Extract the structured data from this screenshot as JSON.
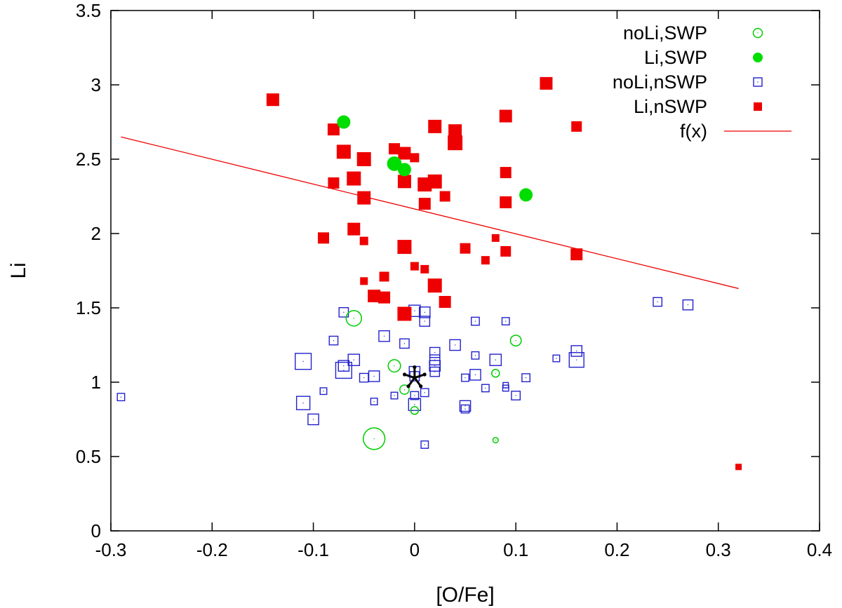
{
  "chart_data": {
    "type": "scatter",
    "xlabel": "[O/Fe]",
    "ylabel": "Li",
    "xlim": [
      -0.3,
      0.4
    ],
    "ylim": [
      0,
      3.5
    ],
    "xticks": [
      "-0.3",
      "-0.2",
      "-0.1",
      "0",
      "0.1",
      "0.2",
      "0.3",
      "0.4"
    ],
    "yticks": [
      "0",
      "0.5",
      "1",
      "1.5",
      "2",
      "2.5",
      "3",
      "3.5"
    ],
    "grid": false,
    "legend_position": "top-right",
    "series": [
      {
        "name": "noLi,SWP",
        "marker": "open-circle",
        "color": "#00cc00",
        "points": [
          {
            "x": -0.06,
            "y": 1.43,
            "size": 1.0
          },
          {
            "x": -0.02,
            "y": 1.11,
            "size": 0.8
          },
          {
            "x": -0.01,
            "y": 0.95,
            "size": 0.6
          },
          {
            "x": 0.0,
            "y": 0.81,
            "size": 0.5
          },
          {
            "x": -0.04,
            "y": 0.62,
            "size": 1.4
          },
          {
            "x": 0.08,
            "y": 1.06,
            "size": 0.5
          },
          {
            "x": 0.08,
            "y": 0.61,
            "size": 0.35
          },
          {
            "x": 0.1,
            "y": 1.28,
            "size": 0.7
          }
        ]
      },
      {
        "name": "Li,SWP",
        "marker": "filled-circle",
        "color": "#00dd00",
        "points": [
          {
            "x": -0.07,
            "y": 2.75,
            "size": 1.0
          },
          {
            "x": -0.02,
            "y": 2.47,
            "size": 1.1
          },
          {
            "x": -0.01,
            "y": 2.43,
            "size": 1.0
          },
          {
            "x": 0.11,
            "y": 2.26,
            "size": 1.0
          }
        ]
      },
      {
        "name": "noLi,nSWP",
        "marker": "open-square",
        "color": "#2222cc",
        "points": [
          {
            "x": -0.29,
            "y": 0.9,
            "size": 0.55
          },
          {
            "x": -0.11,
            "y": 1.14,
            "size": 1.2
          },
          {
            "x": -0.11,
            "y": 0.86,
            "size": 1.0
          },
          {
            "x": -0.1,
            "y": 0.75,
            "size": 0.8
          },
          {
            "x": -0.09,
            "y": 0.94,
            "size": 0.5
          },
          {
            "x": -0.08,
            "y": 1.28,
            "size": 0.65
          },
          {
            "x": -0.07,
            "y": 1.47,
            "size": 0.7
          },
          {
            "x": -0.07,
            "y": 1.11,
            "size": 0.8
          },
          {
            "x": -0.07,
            "y": 1.08,
            "size": 1.2
          },
          {
            "x": -0.06,
            "y": 1.15,
            "size": 0.85
          },
          {
            "x": -0.05,
            "y": 1.03,
            "size": 0.65
          },
          {
            "x": -0.04,
            "y": 1.04,
            "size": 0.8
          },
          {
            "x": -0.04,
            "y": 0.87,
            "size": 0.5
          },
          {
            "x": -0.03,
            "y": 1.31,
            "size": 0.8
          },
          {
            "x": -0.02,
            "y": 0.91,
            "size": 0.5
          },
          {
            "x": -0.01,
            "y": 1.26,
            "size": 0.7
          },
          {
            "x": 0.0,
            "y": 1.48,
            "size": 0.85
          },
          {
            "x": 0.0,
            "y": 1.07,
            "size": 0.8
          },
          {
            "x": 0.0,
            "y": 1.04,
            "size": 0.7
          },
          {
            "x": 0.0,
            "y": 0.91,
            "size": 0.6
          },
          {
            "x": 0.0,
            "y": 0.85,
            "size": 0.9
          },
          {
            "x": 0.01,
            "y": 1.47,
            "size": 0.8
          },
          {
            "x": 0.01,
            "y": 1.41,
            "size": 0.75
          },
          {
            "x": 0.01,
            "y": 0.93,
            "size": 0.6
          },
          {
            "x": 0.01,
            "y": 0.58,
            "size": 0.55
          },
          {
            "x": 0.02,
            "y": 1.2,
            "size": 0.75
          },
          {
            "x": 0.02,
            "y": 1.15,
            "size": 0.75
          },
          {
            "x": 0.02,
            "y": 1.11,
            "size": 0.8
          },
          {
            "x": 0.02,
            "y": 1.07,
            "size": 0.7
          },
          {
            "x": 0.04,
            "y": 1.25,
            "size": 0.8
          },
          {
            "x": 0.05,
            "y": 1.03,
            "size": 0.55
          },
          {
            "x": 0.05,
            "y": 0.84,
            "size": 0.8
          },
          {
            "x": 0.05,
            "y": 0.82,
            "size": 0.6
          },
          {
            "x": 0.06,
            "y": 1.41,
            "size": 0.6
          },
          {
            "x": 0.06,
            "y": 1.18,
            "size": 0.55
          },
          {
            "x": 0.06,
            "y": 1.05,
            "size": 0.8
          },
          {
            "x": 0.07,
            "y": 0.96,
            "size": 0.55
          },
          {
            "x": 0.08,
            "y": 1.15,
            "size": 0.85
          },
          {
            "x": 0.09,
            "y": 1.41,
            "size": 0.55
          },
          {
            "x": 0.09,
            "y": 0.98,
            "size": 0.4
          },
          {
            "x": 0.09,
            "y": 0.96,
            "size": 0.45
          },
          {
            "x": 0.1,
            "y": 0.91,
            "size": 0.65
          },
          {
            "x": 0.11,
            "y": 1.03,
            "size": 0.6
          },
          {
            "x": 0.14,
            "y": 1.16,
            "size": 0.5
          },
          {
            "x": 0.16,
            "y": 1.21,
            "size": 0.8
          },
          {
            "x": 0.16,
            "y": 1.15,
            "size": 1.1
          },
          {
            "x": 0.24,
            "y": 1.54,
            "size": 0.65
          },
          {
            "x": 0.27,
            "y": 1.52,
            "size": 0.75
          }
        ]
      },
      {
        "name": "Li,nSWP",
        "marker": "filled-square",
        "color": "#ee0000",
        "points": [
          {
            "x": -0.14,
            "y": 2.9,
            "size": 0.9
          },
          {
            "x": -0.08,
            "y": 2.7,
            "size": 0.85
          },
          {
            "x": -0.08,
            "y": 2.34,
            "size": 0.8
          },
          {
            "x": -0.09,
            "y": 1.97,
            "size": 0.8
          },
          {
            "x": -0.07,
            "y": 2.55,
            "size": 1.0
          },
          {
            "x": -0.06,
            "y": 2.37,
            "size": 1.0
          },
          {
            "x": -0.06,
            "y": 2.03,
            "size": 0.9
          },
          {
            "x": -0.05,
            "y": 2.5,
            "size": 1.0
          },
          {
            "x": -0.05,
            "y": 2.24,
            "size": 0.95
          },
          {
            "x": -0.05,
            "y": 1.95,
            "size": 0.6
          },
          {
            "x": -0.05,
            "y": 1.68,
            "size": 0.55
          },
          {
            "x": -0.04,
            "y": 1.58,
            "size": 0.9
          },
          {
            "x": -0.03,
            "y": 1.57,
            "size": 0.85
          },
          {
            "x": -0.03,
            "y": 1.71,
            "size": 0.7
          },
          {
            "x": -0.02,
            "y": 2.57,
            "size": 0.8
          },
          {
            "x": -0.01,
            "y": 2.54,
            "size": 0.9
          },
          {
            "x": -0.01,
            "y": 2.35,
            "size": 0.95
          },
          {
            "x": -0.01,
            "y": 1.91,
            "size": 1.0
          },
          {
            "x": -0.01,
            "y": 1.46,
            "size": 1.0
          },
          {
            "x": 0.0,
            "y": 2.51,
            "size": 0.65
          },
          {
            "x": 0.0,
            "y": 1.78,
            "size": 0.6
          },
          {
            "x": 0.01,
            "y": 2.33,
            "size": 1.0
          },
          {
            "x": 0.01,
            "y": 2.2,
            "size": 0.85
          },
          {
            "x": 0.01,
            "y": 1.76,
            "size": 0.6
          },
          {
            "x": 0.02,
            "y": 2.72,
            "size": 0.95
          },
          {
            "x": 0.02,
            "y": 2.35,
            "size": 1.0
          },
          {
            "x": 0.02,
            "y": 1.65,
            "size": 1.0
          },
          {
            "x": 0.03,
            "y": 2.25,
            "size": 0.75
          },
          {
            "x": 0.03,
            "y": 1.54,
            "size": 0.85
          },
          {
            "x": 0.04,
            "y": 2.69,
            "size": 0.95
          },
          {
            "x": 0.04,
            "y": 2.61,
            "size": 1.05
          },
          {
            "x": 0.05,
            "y": 1.9,
            "size": 0.75
          },
          {
            "x": 0.07,
            "y": 1.82,
            "size": 0.6
          },
          {
            "x": 0.08,
            "y": 1.97,
            "size": 0.55
          },
          {
            "x": 0.09,
            "y": 2.79,
            "size": 0.9
          },
          {
            "x": 0.09,
            "y": 2.41,
            "size": 0.8
          },
          {
            "x": 0.09,
            "y": 2.21,
            "size": 0.85
          },
          {
            "x": 0.09,
            "y": 1.88,
            "size": 0.75
          },
          {
            "x": 0.13,
            "y": 3.01,
            "size": 0.9
          },
          {
            "x": 0.16,
            "y": 2.72,
            "size": 0.75
          },
          {
            "x": 0.16,
            "y": 1.86,
            "size": 0.85
          },
          {
            "x": 0.32,
            "y": 0.43,
            "size": 0.45
          }
        ]
      },
      {
        "name": "f(x)",
        "type": "line",
        "color": "#ee0000",
        "points": [
          {
            "x": -0.29,
            "y": 2.65
          },
          {
            "x": 0.32,
            "y": 1.63
          }
        ]
      }
    ],
    "annotations": [
      {
        "type": "sun-symbol",
        "x": 0.0,
        "y": 1.03,
        "color": "#000000"
      }
    ]
  }
}
